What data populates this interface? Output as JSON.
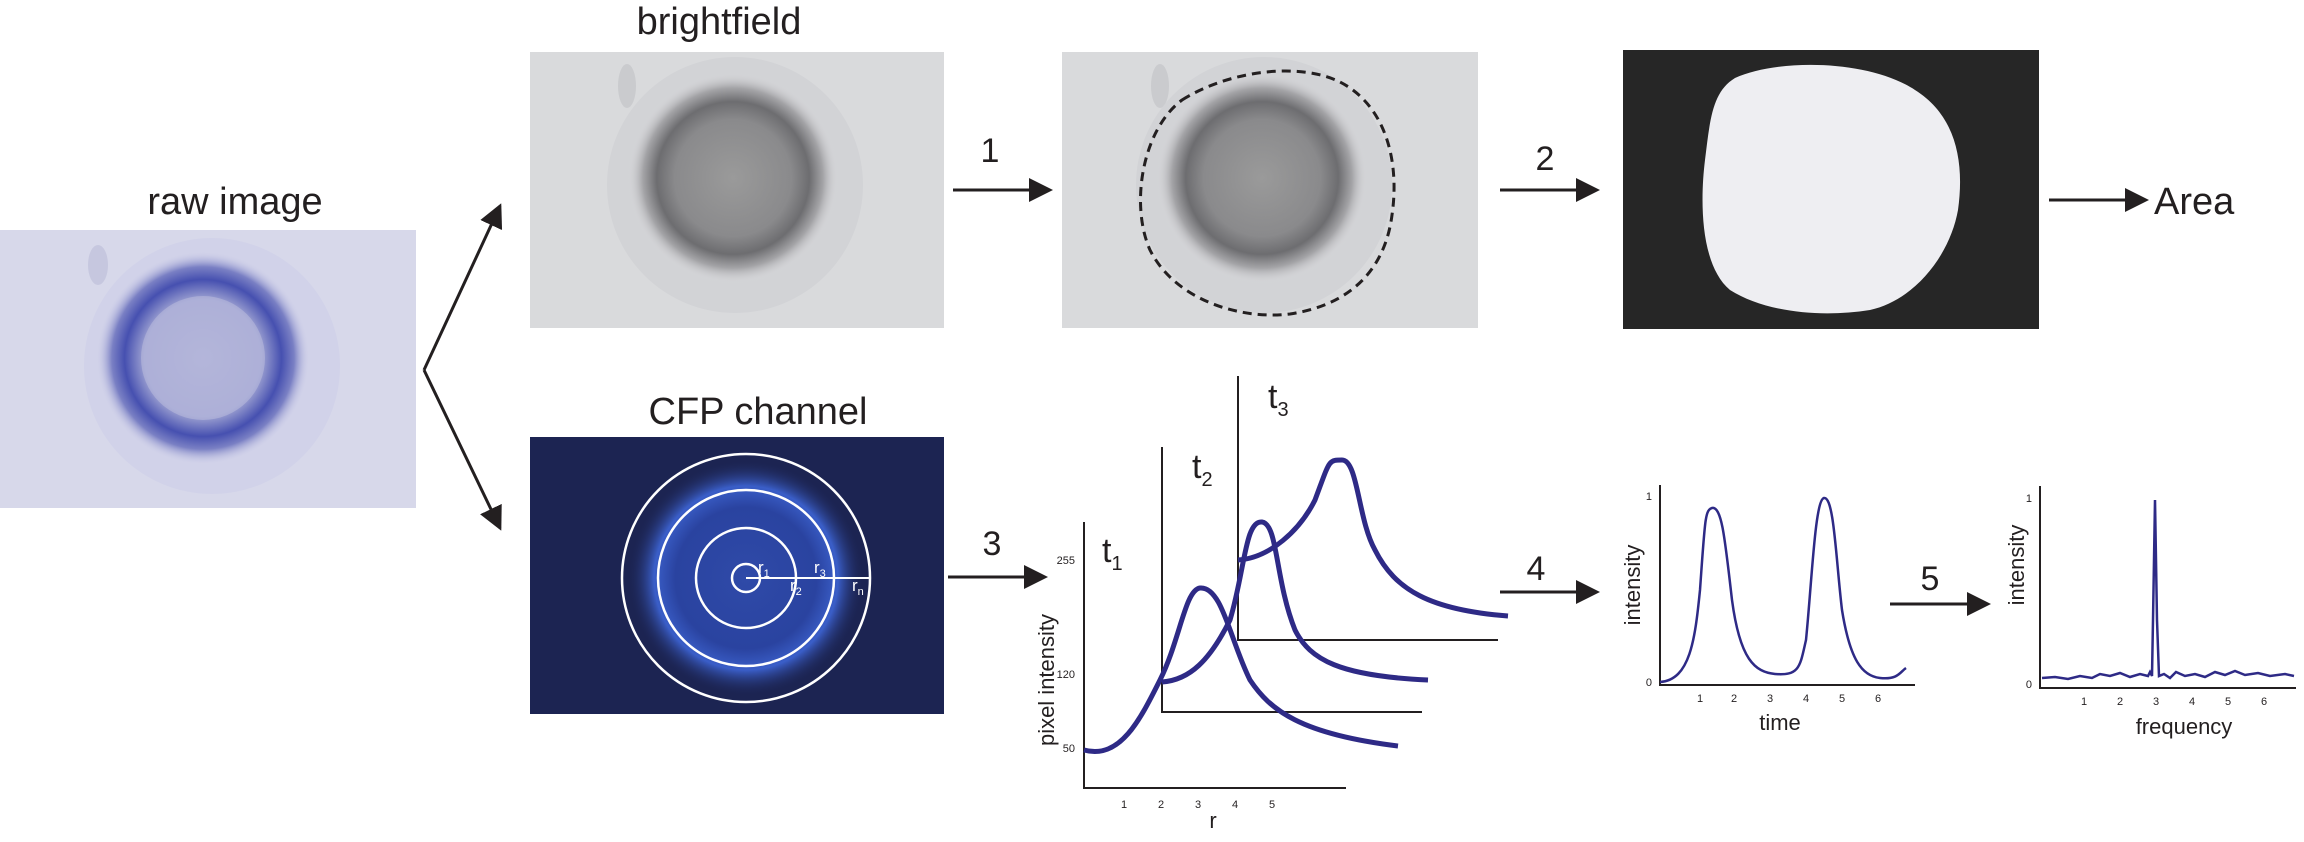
{
  "titles": {
    "raw": "raw image",
    "brightfield": "brightfield",
    "cfp": "CFP channel",
    "area": "Area"
  },
  "steps": [
    "1",
    "2",
    "3",
    "4",
    "5"
  ],
  "rings": {
    "r1": "r",
    "r1_sub": "1",
    "r2": "r",
    "r2_sub": "2",
    "r3": "r",
    "r3_sub": "3",
    "rn": "r",
    "rn_sub": "n"
  },
  "profile_plot": {
    "ylabel": "pixel intensity",
    "xlabel": "r",
    "yticks": [
      "255",
      "120",
      "50"
    ],
    "xticks": [
      "1",
      "2",
      "3",
      "4",
      "5"
    ],
    "t1": "t",
    "t1_sub": "1",
    "t2": "t",
    "t2_sub": "2",
    "t3": "t",
    "t3_sub": "3"
  },
  "time_plot": {
    "ylabel": "intensity",
    "xlabel": "time",
    "yticks": [
      "1",
      "0"
    ],
    "xticks": [
      "1",
      "2",
      "3",
      "4",
      "5",
      "6"
    ]
  },
  "freq_plot": {
    "ylabel": "intensity",
    "xlabel": "frequency",
    "yticks": [
      "1",
      "0"
    ],
    "xticks": [
      "1",
      "2",
      "3",
      "4",
      "5",
      "6"
    ]
  },
  "colors": {
    "curve": "#2e2a86",
    "stain": "#3d47a8",
    "cfp_bg": "#1c2452",
    "mask_bg": "#262626",
    "mask_fg": "#eeeef2"
  }
}
